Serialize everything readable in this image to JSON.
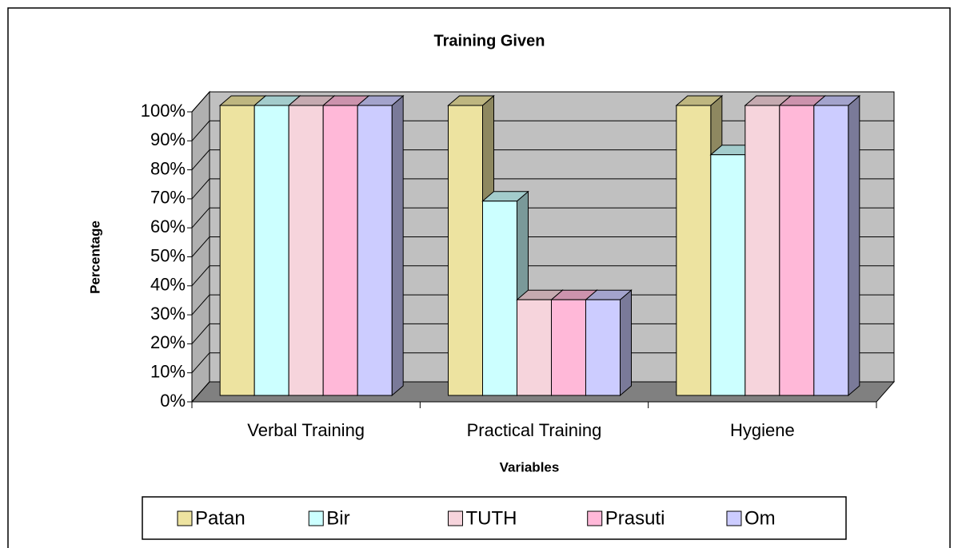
{
  "chart_data": {
    "type": "bar3d",
    "title": "Training Given",
    "xlabel": "Variables",
    "ylabel": "Percentage",
    "categories": [
      "Verbal Training",
      "Practical Training",
      "Hygiene"
    ],
    "series": [
      {
        "name": "Patan",
        "color": "#ede3a0",
        "values": [
          100,
          100,
          100
        ]
      },
      {
        "name": "Bir",
        "color": "#ccffff",
        "values": [
          100,
          67,
          83
        ]
      },
      {
        "name": "TUTH",
        "color": "#f6d4dc",
        "values": [
          100,
          33,
          100
        ]
      },
      {
        "name": "Prasuti",
        "color": "#ffb8d8",
        "values": [
          100,
          33,
          100
        ]
      },
      {
        "name": "Om",
        "color": "#ccccff",
        "values": [
          100,
          33,
          100
        ]
      }
    ],
    "ylim": [
      0,
      100
    ],
    "yticks": [
      {
        "value": 0,
        "label": "0%"
      },
      {
        "value": 10,
        "label": "10%"
      },
      {
        "value": 20,
        "label": "20%"
      },
      {
        "value": 30,
        "label": "30%"
      },
      {
        "value": 40,
        "label": "40%"
      },
      {
        "value": 50,
        "label": "50%"
      },
      {
        "value": 60,
        "label": "60%"
      },
      {
        "value": 70,
        "label": "70%"
      },
      {
        "value": 80,
        "label": "80%"
      },
      {
        "value": 90,
        "label": "90%"
      },
      {
        "value": 100,
        "label": "100%"
      }
    ],
    "grid": true,
    "legend": "bottom"
  }
}
